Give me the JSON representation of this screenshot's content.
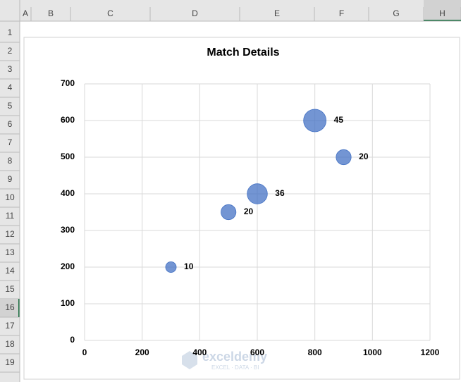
{
  "spreadsheet": {
    "column_headers": [
      "A",
      "B",
      "C",
      "D",
      "E",
      "F",
      "G",
      "H"
    ],
    "row_headers": [
      "1",
      "2",
      "3",
      "4",
      "5",
      "6",
      "7",
      "8",
      "9",
      "10",
      "11",
      "12",
      "13",
      "14",
      "15",
      "16",
      "17",
      "18",
      "19"
    ]
  },
  "chart_data": {
    "type": "bubble",
    "title": "Match Details",
    "x": [
      300,
      500,
      600,
      800,
      900
    ],
    "values": [
      200,
      350,
      400,
      600,
      500
    ],
    "sizes": [
      10,
      20,
      36,
      45,
      20
    ],
    "color": "#4472c4",
    "xlim": [
      0,
      1200
    ],
    "xticks": [
      0,
      200,
      400,
      600,
      800,
      1000,
      1200
    ],
    "ylim": [
      0,
      700
    ],
    "yticks": [
      0,
      100,
      200,
      300,
      400,
      500,
      600,
      700
    ],
    "grid": true
  },
  "watermark": {
    "name": "exceldemy",
    "tagline": "EXCEL · DATA · BI"
  }
}
